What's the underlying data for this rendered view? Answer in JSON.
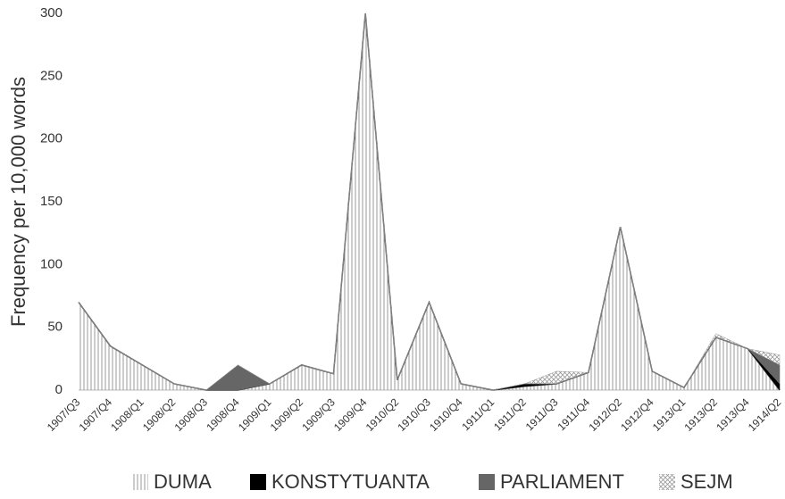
{
  "chart_data": {
    "type": "stacked_area",
    "y_label": "Frequency per 10,000 words",
    "categories": [
      "1907/Q3",
      "1907/Q4",
      "1908/Q1",
      "1908/Q2",
      "1908/Q3",
      "1908/Q4",
      "1909/Q1",
      "1909/Q2",
      "1909/Q3",
      "1909/Q4",
      "1910/Q2",
      "1910/Q3",
      "1910/Q4",
      "1911/Q1",
      "1911/Q2",
      "1911/Q3",
      "1911/Q4",
      "1912/Q2",
      "1912/Q4",
      "1913/Q1",
      "1913/Q2",
      "1913/Q4",
      "1914/Q2"
    ],
    "series": [
      {
        "name": "DUMA",
        "color": "#9a9a9a",
        "pattern": "vertical",
        "values": [
          70,
          35,
          20,
          5,
          0,
          0,
          5,
          20,
          13,
          300,
          8,
          70,
          5,
          0,
          3,
          5,
          14,
          130,
          15,
          2,
          42,
          33,
          0
        ]
      },
      {
        "name": "KONSTYTUANTA",
        "color": "#000000",
        "pattern": "solid",
        "values": [
          0,
          0,
          0,
          0,
          0,
          0,
          0,
          0,
          0,
          0,
          0,
          0,
          0,
          0,
          2,
          0,
          0,
          0,
          0,
          0,
          0,
          0,
          5
        ]
      },
      {
        "name": "PARLIAMENT",
        "color": "#666666",
        "pattern": "solid",
        "values": [
          0,
          0,
          0,
          0,
          0,
          20,
          0,
          0,
          0,
          0,
          0,
          0,
          0,
          0,
          0,
          0,
          0,
          0,
          0,
          0,
          0,
          0,
          15
        ]
      },
      {
        "name": "SEJM",
        "color": "#9a9a9a",
        "pattern": "crosshatch",
        "values": [
          0,
          0,
          0,
          0,
          0,
          0,
          0,
          0,
          0,
          0,
          0,
          0,
          0,
          0,
          0,
          10,
          0,
          0,
          0,
          0,
          3,
          0,
          8
        ]
      }
    ],
    "ylim": [
      0,
      300
    ],
    "yticks": [
      0,
      50,
      100,
      150,
      200,
      250,
      300
    ],
    "grid": false,
    "legend": "bottom"
  }
}
